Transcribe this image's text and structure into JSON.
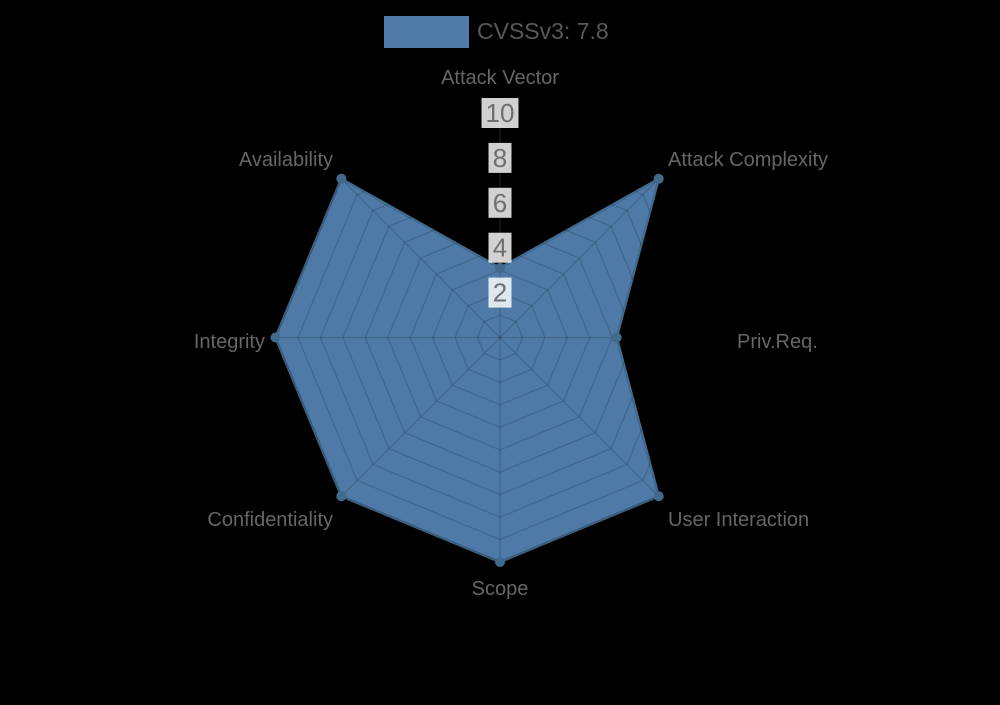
{
  "legend": {
    "label": "CVSSv3: 7.8",
    "swatch_color": "#4f7aa8"
  },
  "chart_data": {
    "type": "radar",
    "title": "CVSSv3: 7.8",
    "categories": [
      "Attack Vector",
      "Attack Complexity",
      "Priv.Req.",
      "User Interaction",
      "Scope",
      "Confidentiality",
      "Integrity",
      "Availability"
    ],
    "series": [
      {
        "name": "CVSSv3: 7.8",
        "values": [
          3.1,
          10,
          5.2,
          10,
          10,
          10,
          10,
          10
        ]
      }
    ],
    "rlim": [
      0,
      10
    ],
    "radial_ticks": [
      10,
      8,
      6,
      4,
      2
    ],
    "grid_rings": 10,
    "grid_shape": "polygon",
    "grid_on": true,
    "legend_position": "top-center",
    "colors": {
      "background": "#000000",
      "fill": "#4f7aa8",
      "stroke": "#426a8d",
      "point": "#426a8d",
      "grid_overlay": "rgba(0,0,0,0.16)",
      "axis_line": "#2d2d2d",
      "tick_text": "#6f6f6f",
      "tick_backdrop": "rgba(255,255,255,0.82)",
      "category_text": "#666666",
      "legend_text": "#58595b"
    }
  }
}
